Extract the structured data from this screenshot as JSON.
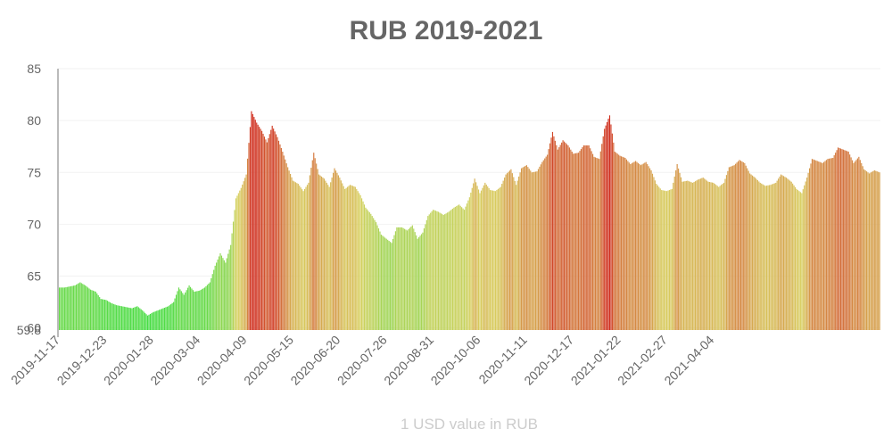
{
  "chart_data": {
    "type": "bar",
    "title": "RUB 2019-2021",
    "xlabel": "1 USD value in RUB",
    "ylabel": "",
    "ylim": [
      59.8,
      85
    ],
    "y_ticks": [
      "59.8",
      "60",
      "65",
      "70",
      "75",
      "80",
      "85"
    ],
    "x_tick_labels": [
      "2019-11-17",
      "2019-12-23",
      "2020-01-28",
      "2020-03-04",
      "2020-04-09",
      "2020-05-15",
      "2020-06-20",
      "2020-07-26",
      "2020-08-31",
      "2020-10-06",
      "2020-11-11",
      "2020-12-17",
      "2021-01-22",
      "2021-02-27",
      "2021-04-04"
    ],
    "start_date": "2019-11-17",
    "step_days": 4,
    "grid": true,
    "color_scale": {
      "low": "#44dd44",
      "mid": "#d8d060",
      "high": "#d03020",
      "low_value": 61,
      "mid_value": 73,
      "high_value": 80
    },
    "values": [
      63.9,
      63.9,
      64.0,
      64.1,
      64.4,
      64.1,
      63.7,
      63.5,
      62.8,
      62.7,
      62.4,
      62.2,
      62.1,
      62.0,
      61.9,
      62.1,
      61.7,
      61.2,
      61.5,
      61.7,
      61.9,
      62.1,
      62.5,
      63.9,
      63.2,
      64.1,
      63.5,
      63.6,
      63.9,
      64.4,
      66.0,
      67.2,
      66.3,
      68.0,
      72.5,
      73.5,
      74.8,
      80.9,
      79.8,
      79.0,
      77.9,
      79.5,
      78.4,
      77.0,
      75.5,
      74.2,
      73.9,
      73.2,
      74.0,
      76.9,
      74.8,
      74.4,
      73.6,
      75.4,
      74.5,
      73.4,
      73.8,
      73.6,
      72.8,
      71.6,
      71.0,
      70.2,
      69.0,
      68.6,
      68.2,
      69.7,
      69.7,
      69.4,
      69.9,
      68.6,
      69.2,
      70.8,
      71.4,
      71.2,
      70.9,
      71.2,
      71.6,
      71.9,
      71.4,
      72.6,
      74.4,
      73.0,
      74.0,
      73.3,
      73.2,
      73.6,
      74.8,
      75.3,
      73.8,
      75.4,
      75.7,
      75.0,
      75.1,
      76.0,
      76.7,
      78.9,
      77.2,
      78.1,
      77.6,
      76.8,
      76.9,
      77.6,
      77.6,
      76.5,
      76.3,
      79.2,
      80.5,
      77.0,
      76.6,
      76.4,
      75.8,
      76.1,
      75.7,
      76.0,
      75.2,
      73.9,
      73.3,
      73.2,
      73.4,
      75.8,
      74.1,
      74.2,
      74.0,
      74.3,
      74.5,
      74.1,
      74.0,
      73.6,
      74.0,
      75.5,
      75.7,
      76.2,
      75.9,
      74.9,
      74.5,
      74.0,
      73.7,
      73.8,
      74.0,
      74.8,
      74.5,
      74.1,
      73.4,
      73.0,
      74.5,
      76.3,
      76.1,
      75.9,
      76.3,
      76.4,
      77.4,
      77.2,
      77.0,
      75.9,
      76.5,
      75.3,
      74.9,
      75.2,
      75.0
    ]
  }
}
